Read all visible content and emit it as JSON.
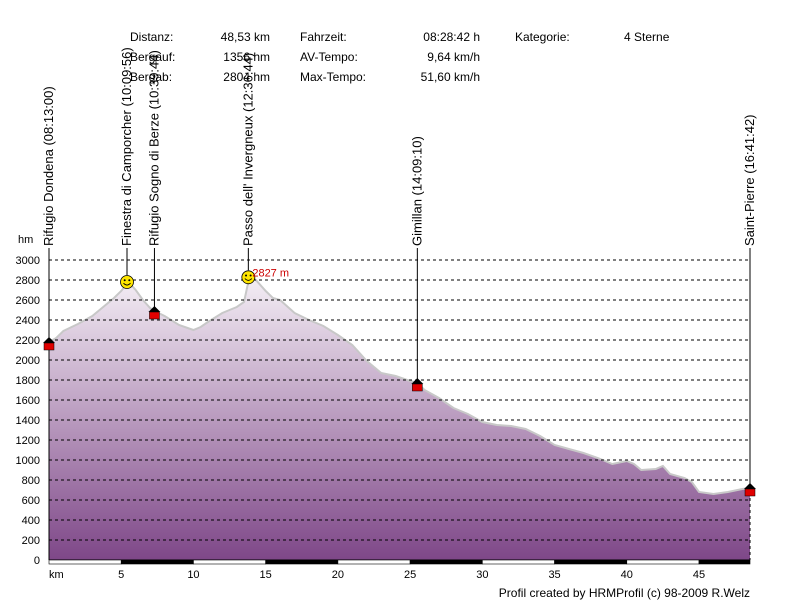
{
  "stats": {
    "distance_label": "Distanz:",
    "distance_value": "48,53 km",
    "ascent_label": "Bergauf:",
    "ascent_value": "1356 hm",
    "descent_label": "Bergab:",
    "descent_value": "2804 hm",
    "time_label": "Fahrzeit:",
    "time_value": "08:28:42 h",
    "avg_label": "AV-Tempo:",
    "avg_value": "9,64 km/h",
    "max_label": "Max-Tempo:",
    "max_value": "51,60 km/h",
    "category_label": "Kategorie:",
    "category_value": "4 Sterne"
  },
  "footer": "Profil created by HRMProfil (c) 98-2009 R.Welz",
  "chart_data": {
    "type": "area",
    "ylabel": "hm",
    "xlabel": "km",
    "xlim": [
      0,
      48.53
    ],
    "ylim": [
      0,
      3000
    ],
    "grid": true,
    "colors": {
      "fill_top": "#f4eef5",
      "fill_bottom": "#7e4788",
      "line": "#c8c8c8",
      "marker_red": "#e00000",
      "peak_label": "#cc0000"
    },
    "yticks": [
      0,
      200,
      400,
      600,
      800,
      1000,
      1200,
      1400,
      1600,
      1800,
      2000,
      2200,
      2400,
      2600,
      2800,
      3000
    ],
    "xticks": [
      5,
      10,
      15,
      20,
      25,
      30,
      35,
      40,
      45
    ],
    "x": [
      0,
      0.5,
      1,
      2,
      3,
      4,
      4.5,
      5,
      5.5,
      6,
      6.5,
      7,
      7.3,
      8,
      9,
      10,
      10.5,
      11,
      12,
      13,
      13.5,
      13.8,
      14.2,
      15,
      15.5,
      16,
      17,
      18,
      19,
      20,
      21,
      22,
      23,
      24,
      25,
      25.5,
      26,
      27,
      28,
      29,
      30,
      31,
      32,
      33,
      34,
      35,
      36,
      37,
      38,
      39,
      40,
      40.5,
      41,
      42,
      42.5,
      43,
      44,
      44.5,
      45,
      46,
      47,
      48,
      48.53
    ],
    "y": [
      2180,
      2220,
      2290,
      2360,
      2440,
      2560,
      2620,
      2690,
      2780,
      2700,
      2600,
      2520,
      2490,
      2440,
      2350,
      2300,
      2330,
      2380,
      2470,
      2530,
      2580,
      2780,
      2820,
      2690,
      2620,
      2600,
      2470,
      2400,
      2340,
      2250,
      2150,
      1990,
      1870,
      1840,
      1790,
      1770,
      1700,
      1620,
      1520,
      1460,
      1380,
      1350,
      1340,
      1310,
      1240,
      1150,
      1110,
      1070,
      1020,
      960,
      990,
      960,
      900,
      910,
      940,
      860,
      820,
      780,
      680,
      660,
      680,
      710,
      720
    ],
    "waypoints": [
      {
        "name": "Rifugio Dondena (08:13:00)",
        "km": 0,
        "alt": 2180,
        "icon": "house"
      },
      {
        "name": "Finestra di Camporcher (10:09:56)",
        "km": 5.4,
        "alt": 2780,
        "icon": "smiley"
      },
      {
        "name": "Rifugio Sogno di Berze (10:39:44)",
        "km": 7.3,
        "alt": 2490,
        "icon": "house"
      },
      {
        "name": "Passo dell' Invergneux (12:36:44)",
        "km": 13.8,
        "alt": 2827,
        "icon": "smiley"
      },
      {
        "name": "Gimillan (14:09:10)",
        "km": 25.5,
        "alt": 1770,
        "icon": "house"
      },
      {
        "name": "Saint-Pierre (16:41:42)",
        "km": 48.53,
        "alt": 720,
        "icon": "house"
      }
    ],
    "peak_label": "2827 m"
  }
}
